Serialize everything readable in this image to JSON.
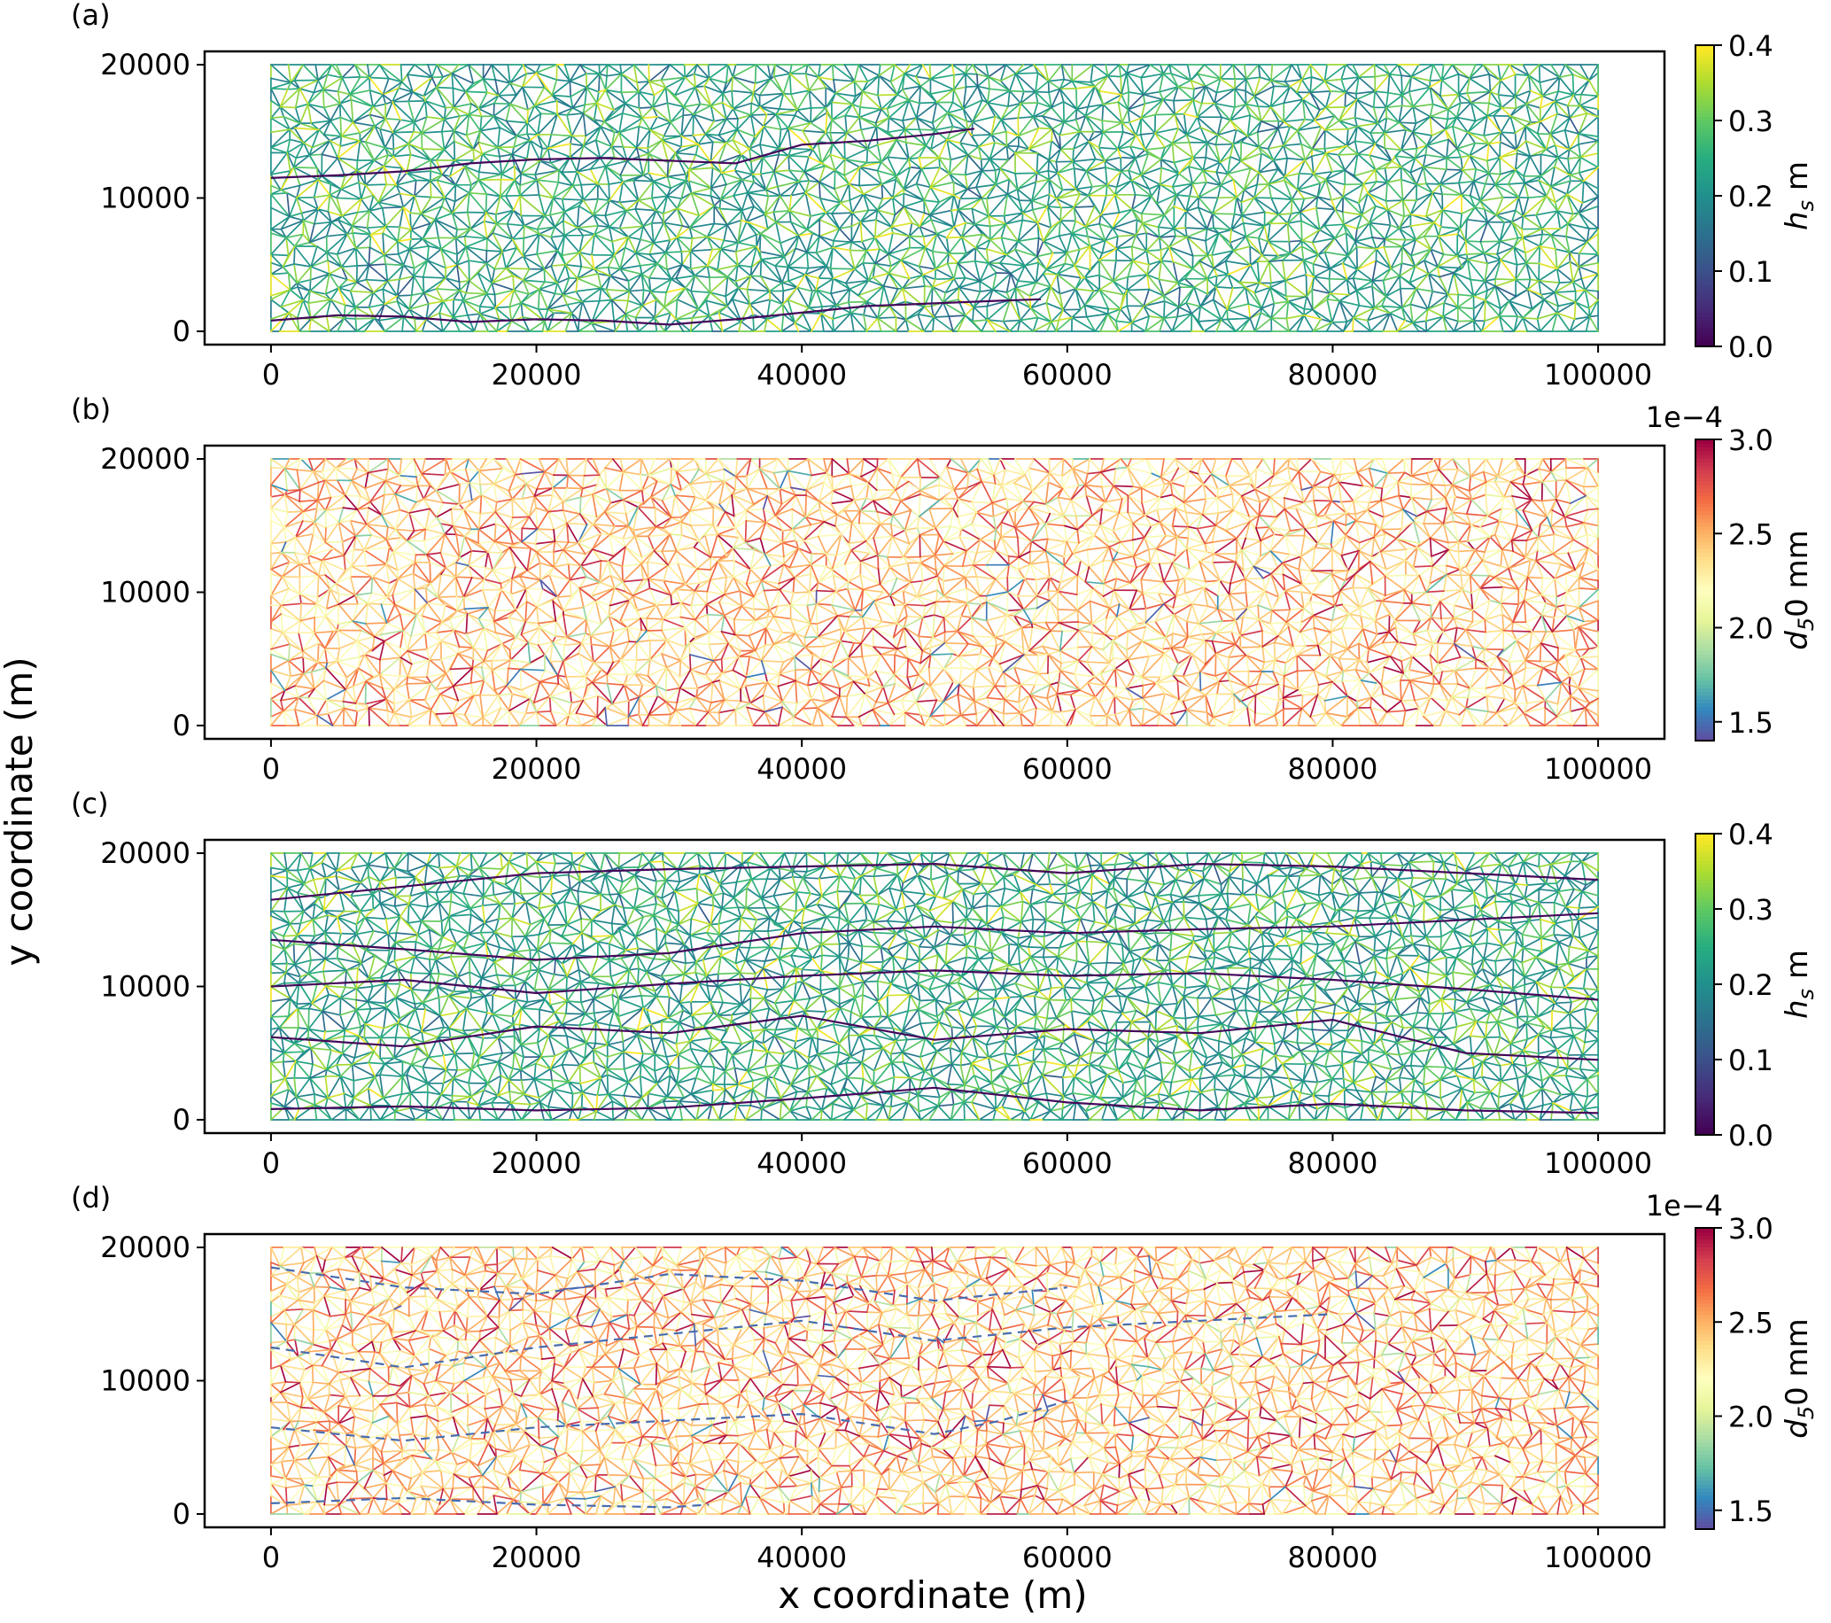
{
  "figure": {
    "xlabel": "x coordinate (m)",
    "ylabel": "y coordinate (m)"
  },
  "chart_data": [
    {
      "panel_label": "(a)",
      "type": "heatmap",
      "description_values": "network edges colored by h_s",
      "xlim": [
        -5000,
        105000
      ],
      "ylim": [
        -1000,
        21000
      ],
      "xticks": [
        0,
        20000,
        40000,
        60000,
        80000,
        100000
      ],
      "yticks": [
        0,
        10000,
        20000
      ],
      "domain": {
        "x": [
          0,
          100000
        ],
        "y": [
          0,
          20000
        ]
      },
      "colorbar": {
        "label": "h_s m",
        "label_main": "h",
        "label_sub": "s",
        "label_unit": " m",
        "colormap": "viridis",
        "range": [
          0.0,
          0.4
        ],
        "ticks": [
          "0.0",
          "0.1",
          "0.2",
          "0.3",
          "0.4"
        ],
        "tick_values": [
          0.0,
          0.1,
          0.2,
          0.3,
          0.4
        ],
        "offset_text": ""
      },
      "channels": [
        {
          "x": [
            0,
            5000,
            10000,
            15000,
            20000,
            25000,
            30000,
            35000,
            40000,
            45000,
            50000,
            53000
          ],
          "y": [
            11500,
            11700,
            12000,
            12600,
            12900,
            13000,
            12800,
            12600,
            14000,
            14300,
            14800,
            15200
          ]
        },
        {
          "x": [
            0,
            5000,
            10000,
            15000,
            20000,
            25000,
            30000,
            35000,
            40000,
            45000,
            50000,
            55000,
            58000
          ],
          "y": [
            800,
            1200,
            1100,
            700,
            900,
            800,
            500,
            900,
            1400,
            1900,
            2100,
            2300,
            2400
          ]
        }
      ]
    },
    {
      "panel_label": "(b)",
      "type": "heatmap",
      "description_values": "network edges colored by d50",
      "xlim": [
        -5000,
        105000
      ],
      "ylim": [
        -1000,
        21000
      ],
      "xticks": [
        0,
        20000,
        40000,
        60000,
        80000,
        100000
      ],
      "yticks": [
        0,
        10000,
        20000
      ],
      "domain": {
        "x": [
          0,
          100000
        ],
        "y": [
          0,
          20000
        ]
      },
      "colorbar": {
        "label": "d_50 mm",
        "label_main": "d",
        "label_sub": "5",
        "label_unit": "0 mm",
        "colormap": "Spectral_r",
        "range": [
          1.4,
          3.0
        ],
        "ticks": [
          "1.5",
          "2.0",
          "2.5",
          "3.0"
        ],
        "tick_values": [
          1.5,
          2.0,
          2.5,
          3.0
        ],
        "offset_text": "1e−4"
      },
      "channels": []
    },
    {
      "panel_label": "(c)",
      "type": "heatmap",
      "description_values": "network edges colored by h_s",
      "xlim": [
        -5000,
        105000
      ],
      "ylim": [
        -1000,
        21000
      ],
      "xticks": [
        0,
        20000,
        40000,
        60000,
        80000,
        100000
      ],
      "yticks": [
        0,
        10000,
        20000
      ],
      "domain": {
        "x": [
          0,
          100000
        ],
        "y": [
          0,
          20000
        ]
      },
      "colorbar": {
        "label": "h_s m",
        "label_main": "h",
        "label_sub": "s",
        "label_unit": " m",
        "colormap": "viridis",
        "range": [
          0.0,
          0.4
        ],
        "ticks": [
          "0.0",
          "0.1",
          "0.2",
          "0.3",
          "0.4"
        ],
        "tick_values": [
          0.0,
          0.1,
          0.2,
          0.3,
          0.4
        ],
        "offset_text": ""
      },
      "channels": [
        {
          "x": [
            0,
            10000,
            20000,
            30000,
            40000,
            50000,
            60000,
            70000,
            80000,
            90000,
            100000
          ],
          "y": [
            16500,
            17500,
            18500,
            18800,
            19000,
            19200,
            18500,
            19200,
            19000,
            18500,
            18000
          ]
        },
        {
          "x": [
            0,
            10000,
            20000,
            30000,
            40000,
            50000,
            60000,
            70000,
            80000,
            90000,
            100000
          ],
          "y": [
            13500,
            12800,
            12000,
            12500,
            14000,
            14500,
            14000,
            14300,
            14500,
            15000,
            15500
          ]
        },
        {
          "x": [
            0,
            10000,
            20000,
            30000,
            40000,
            50000,
            60000,
            70000,
            80000,
            90000,
            100000
          ],
          "y": [
            10000,
            10500,
            9500,
            10200,
            10800,
            11200,
            10800,
            11000,
            10500,
            9800,
            9000
          ]
        },
        {
          "x": [
            0,
            10000,
            20000,
            30000,
            40000,
            50000,
            60000,
            70000,
            80000,
            90000,
            100000
          ],
          "y": [
            6200,
            5500,
            7000,
            6500,
            7800,
            6000,
            6800,
            6500,
            7500,
            5000,
            4500
          ]
        },
        {
          "x": [
            0,
            10000,
            20000,
            30000,
            40000,
            50000,
            60000,
            70000,
            80000,
            90000,
            100000
          ],
          "y": [
            800,
            1000,
            700,
            900,
            1600,
            2400,
            1300,
            700,
            1200,
            700,
            500
          ]
        }
      ]
    },
    {
      "panel_label": "(d)",
      "type": "heatmap",
      "description_values": "network edges colored by d50",
      "xlim": [
        -5000,
        105000
      ],
      "ylim": [
        -1000,
        21000
      ],
      "xticks": [
        0,
        20000,
        40000,
        60000,
        80000,
        100000
      ],
      "yticks": [
        0,
        10000,
        20000
      ],
      "domain": {
        "x": [
          0,
          100000
        ],
        "y": [
          0,
          20000
        ]
      },
      "colorbar": {
        "label": "d_50 mm",
        "label_main": "d",
        "label_sub": "5",
        "label_unit": "0 mm",
        "colormap": "Spectral_r",
        "range": [
          1.4,
          3.0
        ],
        "ticks": [
          "1.5",
          "2.0",
          "2.5",
          "3.0"
        ],
        "tick_values": [
          1.5,
          2.0,
          2.5,
          3.0
        ],
        "offset_text": "1e−4"
      },
      "channels": [
        {
          "x": [
            0,
            10000,
            20000,
            30000,
            40000,
            50000,
            60000
          ],
          "y": [
            18500,
            17000,
            16500,
            18000,
            17500,
            16000,
            17000
          ]
        },
        {
          "x": [
            0,
            10000,
            20000,
            30000,
            40000,
            50000,
            60000,
            70000,
            80000
          ],
          "y": [
            12500,
            11000,
            12500,
            13500,
            14500,
            13000,
            14000,
            14500,
            15000
          ]
        },
        {
          "x": [
            0,
            10000,
            20000,
            30000,
            40000,
            50000,
            55000,
            60000
          ],
          "y": [
            6500,
            5500,
            6500,
            7000,
            7500,
            6000,
            7000,
            8500
          ]
        },
        {
          "x": [
            0,
            10000,
            20000,
            30000,
            33000
          ],
          "y": [
            800,
            1200,
            700,
            500,
            700
          ]
        }
      ]
    }
  ]
}
